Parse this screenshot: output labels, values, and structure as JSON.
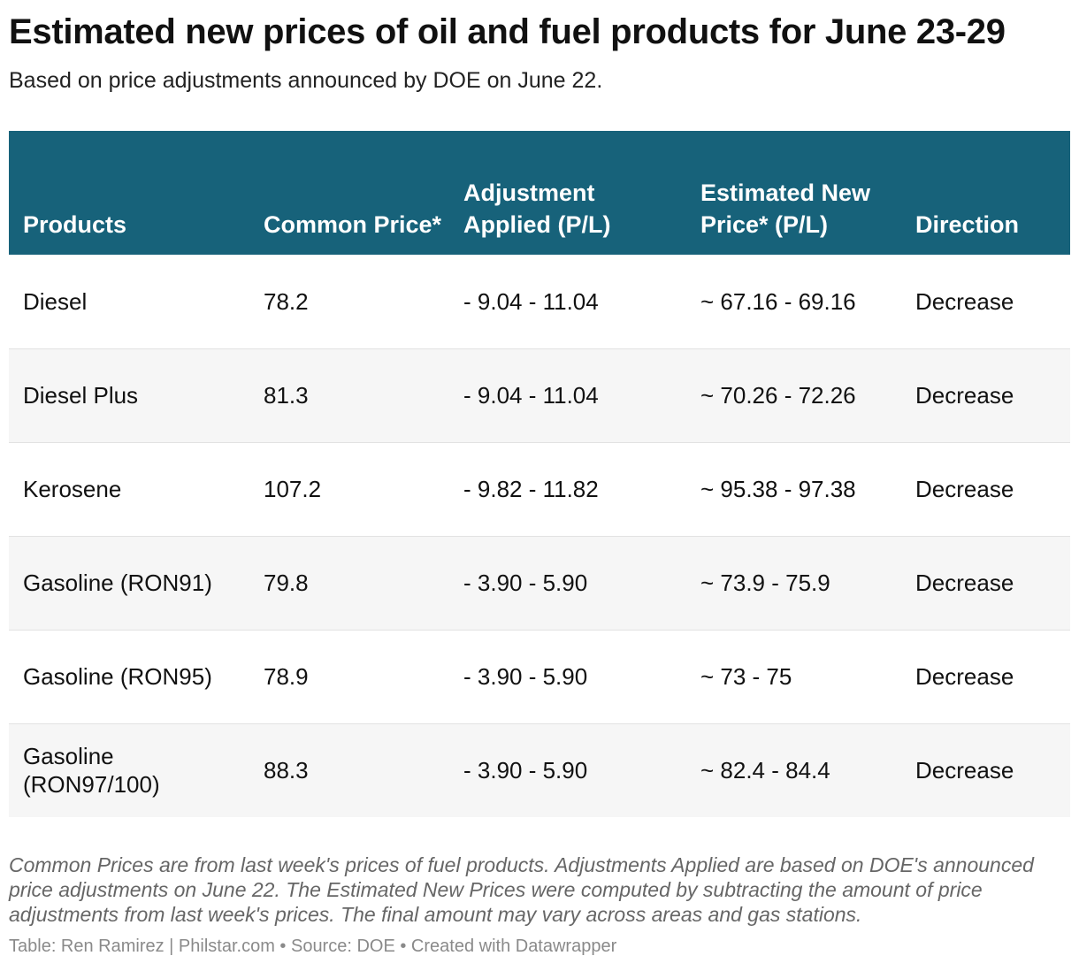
{
  "chart_data": {
    "type": "table",
    "title": "Estimated new prices of oil and fuel products for June 23-29",
    "subtitle": "Based on price adjustments announced by DOE on June 22.",
    "columns": [
      "Products",
      "Common Price*",
      "Adjustment Applied (P/L)",
      "Estimated New Price* (P/L)",
      "Direction"
    ],
    "rows": [
      [
        "Diesel",
        "78.2",
        "- 9.04 - 11.04",
        "~ 67.16 - 69.16",
        "Decrease"
      ],
      [
        "Diesel Plus",
        "81.3",
        "- 9.04 - 11.04",
        "~ 70.26 - 72.26",
        "Decrease"
      ],
      [
        "Kerosene",
        "107.2",
        "- 9.82 - 11.82",
        "~ 95.38 - 97.38",
        "Decrease"
      ],
      [
        "Gasoline (RON91)",
        "79.8",
        "- 3.90 - 5.90",
        "~ 73.9 - 75.9",
        "Decrease"
      ],
      [
        "Gasoline (RON95)",
        "78.9",
        "- 3.90 - 5.90",
        "~ 73 - 75",
        "Decrease"
      ],
      [
        "Gasoline (RON97/100)",
        "88.3",
        "- 3.90 - 5.90",
        "~ 82.4 - 84.4",
        "Decrease"
      ]
    ],
    "notes": "Common Prices are from last week's prices of fuel products. Adjustments Applied are based on DOE's announced price adjustments on June 22. The Estimated New Prices were computed by subtracting the amount of price adjustments from last week's prices. The final amount may vary across areas and gas stations.",
    "byline": "Table: Ren Ramirez | Philstar.com • Source: DOE • Created with Datawrapper"
  },
  "colors": {
    "header_bg": "#17627a",
    "header_text": "#ffffff",
    "stripe": "#f6f6f6"
  }
}
